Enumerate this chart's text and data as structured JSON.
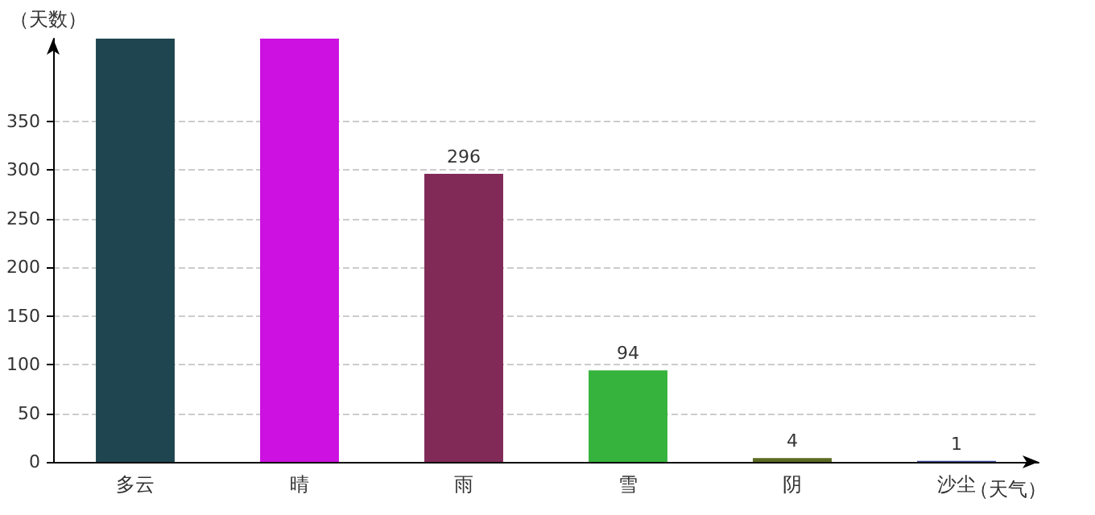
{
  "chart_data": {
    "type": "bar",
    "ylabel": "（天数）",
    "xlabel": "（天气）",
    "categories": [
      "多云",
      "晴",
      "雨",
      "雪",
      "阴",
      "沙尘"
    ],
    "values": [
      435,
      435,
      296,
      94,
      4,
      1
    ],
    "value_labels": [
      null,
      null,
      "296",
      "94",
      "4",
      "1"
    ],
    "colors": [
      "#1f4650",
      "#cc11e0",
      "#812a57",
      "#36b33d",
      "#5b6b22",
      "#3a4a9c"
    ],
    "ylim": [
      0,
      435
    ],
    "yticks": [
      0,
      50,
      100,
      150,
      200,
      250,
      300,
      350
    ],
    "grid": "y"
  }
}
